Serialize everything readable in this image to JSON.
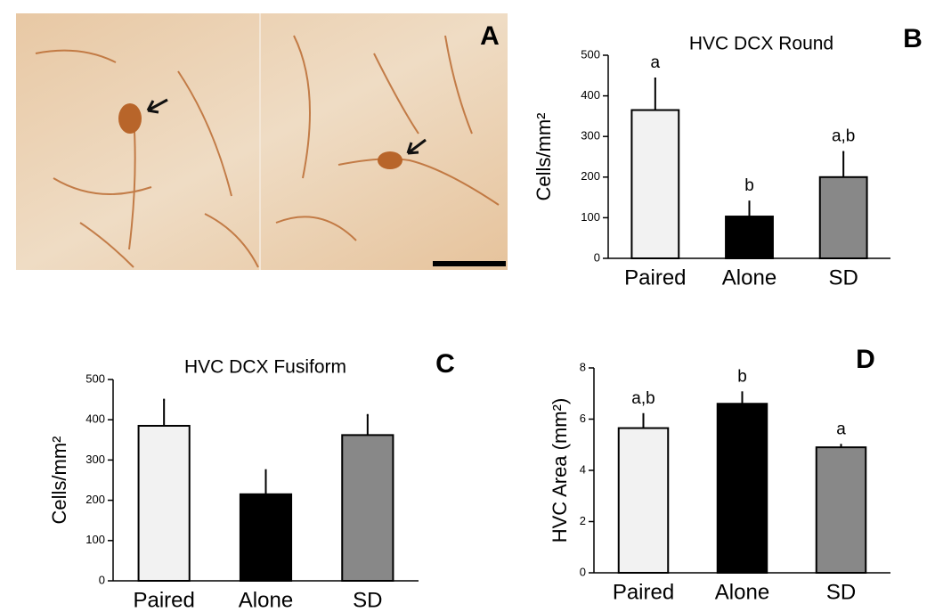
{
  "image_panel": {
    "label": "A"
  },
  "chart_data": [
    {
      "type": "bar",
      "panel": "B",
      "title": "HVC DCX Round",
      "y_label": "Cells/mm²",
      "categories": [
        "Paired",
        "Alone",
        "SD"
      ],
      "values": [
        365,
        103,
        200
      ],
      "errors": [
        78,
        37,
        62
      ],
      "colors": [
        "#f2f2f2",
        "#000000",
        "#888888"
      ],
      "annotations": [
        "a",
        "b",
        "a,b"
      ],
      "ylim": [
        0,
        500
      ],
      "yticks": [
        0,
        100,
        200,
        300,
        400,
        500
      ],
      "grid": false
    },
    {
      "type": "bar",
      "panel": "C",
      "title": "HVC DCX Fusiform",
      "y_label": "Cells/mm²",
      "categories": [
        "Paired",
        "Alone",
        "SD"
      ],
      "values": [
        385,
        215,
        362
      ],
      "errors": [
        65,
        60,
        50
      ],
      "colors": [
        "#f2f2f2",
        "#000000",
        "#888888"
      ],
      "ylim": [
        0,
        500
      ],
      "yticks": [
        0,
        100,
        200,
        300,
        400,
        500
      ],
      "grid": false
    },
    {
      "type": "bar",
      "panel": "D",
      "y_label": "HVC Area (mm²)",
      "categories": [
        "Paired",
        "Alone",
        "SD"
      ],
      "values": [
        5.65,
        6.6,
        4.9
      ],
      "errors": [
        0.55,
        0.45,
        0.1
      ],
      "colors": [
        "#f2f2f2",
        "#000000",
        "#888888"
      ],
      "annotations": [
        "a,b",
        "b",
        "a"
      ],
      "ylim": [
        0,
        8
      ],
      "yticks": [
        0,
        2,
        4,
        6,
        8
      ],
      "grid": false
    }
  ]
}
